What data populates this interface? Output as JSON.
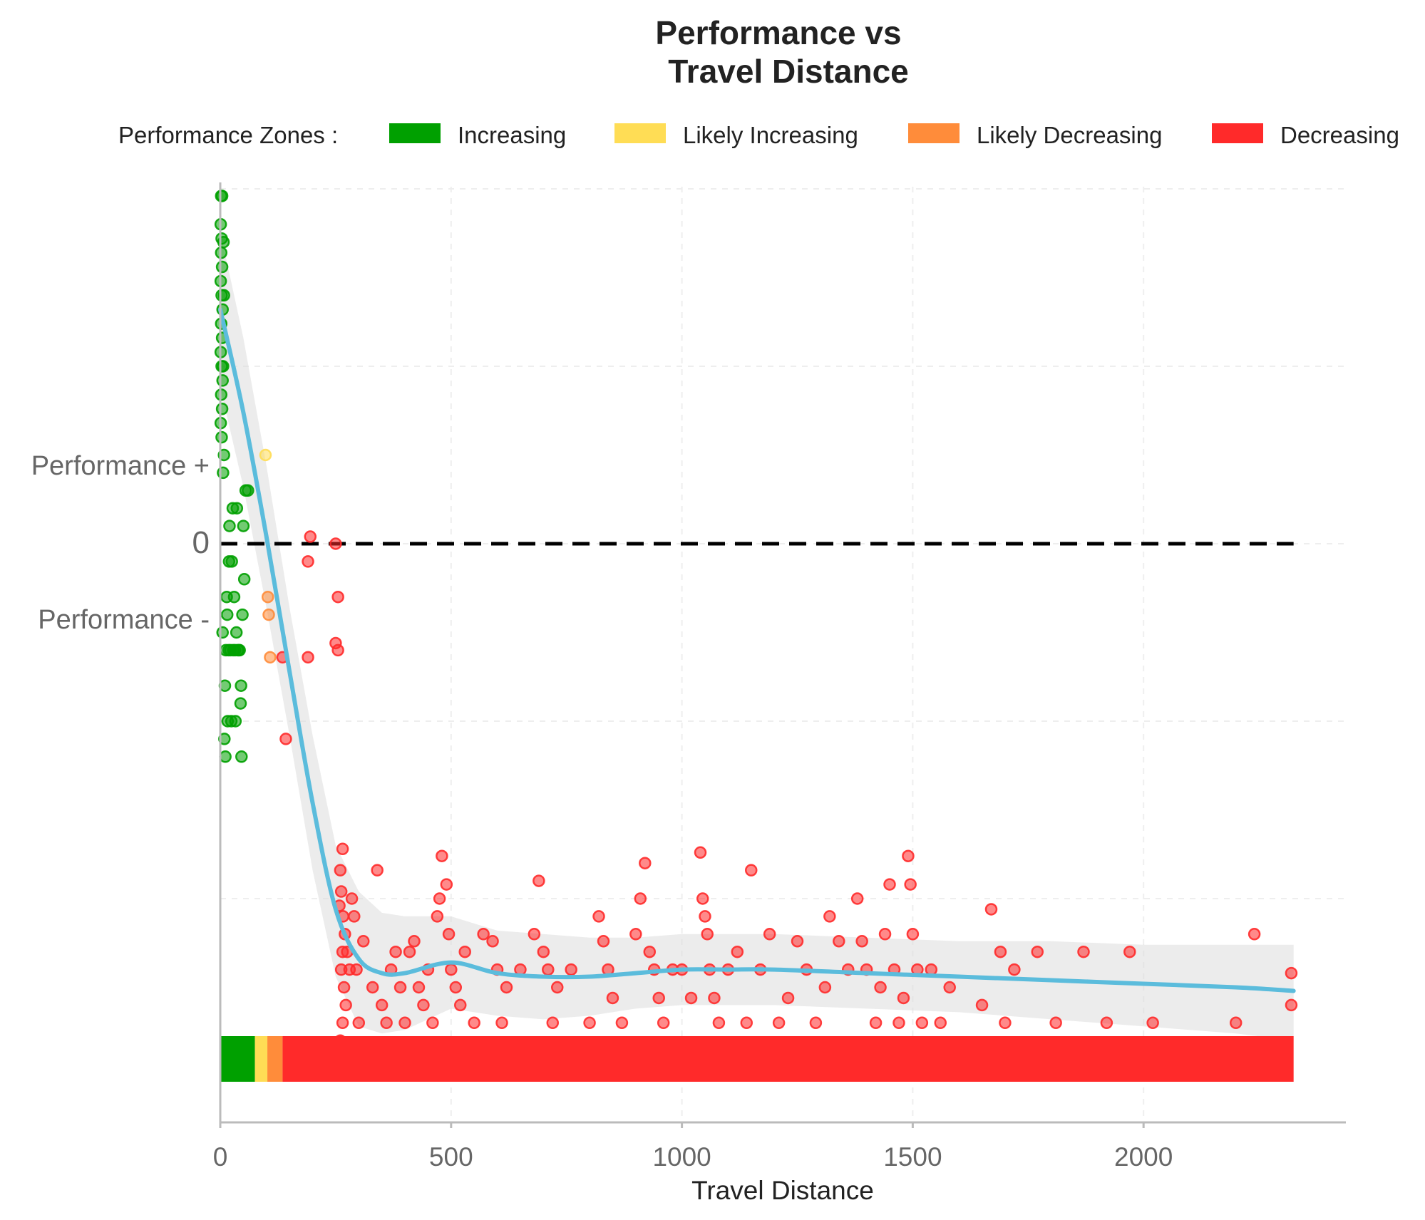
{
  "chart_data": {
    "type": "scatter",
    "title_lines": [
      "Performance vs",
      "Travel Distance"
    ],
    "xlabel": "Travel Distance",
    "x_ticks": [
      0,
      500,
      1000,
      1500,
      2000
    ],
    "x_tick_labels": [
      "0",
      "500",
      "1000",
      "1500",
      "2000"
    ],
    "xlim": [
      0,
      2440
    ],
    "ylim": [
      -1.8,
      1.1
    ],
    "grid": "dashed",
    "y_labels": {
      "plus": "Performance +",
      "zero": "0",
      "minus": "Performance -"
    },
    "legend": {
      "title": "Performance Zones :",
      "placement": "top",
      "entries": [
        {
          "label": "Increasing",
          "color": "#00a000"
        },
        {
          "label": "Likely Increasing",
          "color": "#ffdd55"
        },
        {
          "label": "Likely Decreasing",
          "color": "#ff8c3a"
        },
        {
          "label": "Decreasing",
          "color": "#ff2a2a"
        }
      ]
    },
    "zone_bar": [
      {
        "zone": "Increasing",
        "from": 0,
        "to": 75,
        "color": "#00a000"
      },
      {
        "zone": "Likely Increasing",
        "from": 75,
        "to": 102,
        "color": "#ffdd55"
      },
      {
        "zone": "Likely Decreasing",
        "from": 102,
        "to": 135,
        "color": "#ff8c3a"
      },
      {
        "zone": "Decreasing",
        "from": 135,
        "to": 2325,
        "color": "#ff2a2a"
      }
    ],
    "trend_line": {
      "color": "#5bbcdc",
      "x": [
        0,
        50,
        100,
        150,
        200,
        250,
        300,
        350,
        400,
        500,
        600,
        700,
        800,
        900,
        1000,
        1100,
        1200,
        1400,
        1600,
        1800,
        2000,
        2200,
        2325
      ],
      "y": [
        0.66,
        0.37,
        0.02,
        -0.36,
        -0.73,
        -1.03,
        -1.17,
        -1.21,
        -1.21,
        -1.18,
        -1.21,
        -1.22,
        -1.22,
        -1.21,
        -1.2,
        -1.2,
        -1.2,
        -1.21,
        -1.22,
        -1.23,
        -1.24,
        -1.25,
        -1.26
      ],
      "band_upper": [
        0.88,
        0.58,
        0.22,
        -0.18,
        -0.54,
        -0.85,
        -0.98,
        -1.04,
        -1.05,
        -1.05,
        -1.09,
        -1.1,
        -1.11,
        -1.11,
        -1.1,
        -1.1,
        -1.1,
        -1.11,
        -1.12,
        -1.12,
        -1.13,
        -1.13,
        -1.13
      ],
      "band_lower": [
        0.44,
        0.16,
        -0.18,
        -0.54,
        -0.92,
        -1.22,
        -1.36,
        -1.38,
        -1.37,
        -1.31,
        -1.33,
        -1.34,
        -1.33,
        -1.31,
        -1.3,
        -1.3,
        -1.3,
        -1.31,
        -1.32,
        -1.34,
        -1.36,
        -1.38,
        -1.4
      ]
    },
    "series": [
      {
        "name": "Increasing",
        "color": "#00a000",
        "points": [
          [
            2,
            0.98
          ],
          [
            4,
            0.98
          ],
          [
            1,
            0.9
          ],
          [
            3,
            0.86
          ],
          [
            2,
            0.82
          ],
          [
            4,
            0.78
          ],
          [
            1,
            0.74
          ],
          [
            3,
            0.7
          ],
          [
            5,
            0.66
          ],
          [
            2,
            0.62
          ],
          [
            4,
            0.58
          ],
          [
            1,
            0.54
          ],
          [
            3,
            0.5
          ],
          [
            5,
            0.46
          ],
          [
            2,
            0.42
          ],
          [
            4,
            0.38
          ],
          [
            1,
            0.34
          ],
          [
            3,
            0.3
          ],
          [
            6,
            0.5
          ],
          [
            8,
            0.7
          ],
          [
            7,
            0.85
          ],
          [
            8,
            0.25
          ],
          [
            6,
            0.2
          ],
          [
            15,
            -0.2
          ],
          [
            20,
            0.05
          ],
          [
            25,
            -0.05
          ],
          [
            30,
            -0.15
          ],
          [
            35,
            -0.25
          ],
          [
            40,
            -0.3
          ],
          [
            45,
            -0.4
          ],
          [
            50,
            0.05
          ],
          [
            55,
            0.15
          ],
          [
            60,
            0.15
          ],
          [
            12,
            -0.3
          ],
          [
            18,
            -0.3
          ],
          [
            22,
            -0.3
          ],
          [
            28,
            -0.3
          ],
          [
            32,
            -0.3
          ],
          [
            38,
            -0.3
          ],
          [
            42,
            -0.3
          ],
          [
            48,
            -0.2
          ],
          [
            52,
            -0.1
          ],
          [
            10,
            -0.4
          ],
          [
            16,
            -0.5
          ],
          [
            24,
            -0.5
          ],
          [
            33,
            -0.5
          ],
          [
            44,
            -0.45
          ],
          [
            9,
            -0.55
          ],
          [
            19,
            -0.05
          ],
          [
            27,
            0.1
          ],
          [
            36,
            0.1
          ],
          [
            46,
            -0.6
          ],
          [
            11,
            -0.6
          ],
          [
            5,
            -0.25
          ],
          [
            14,
            -0.15
          ]
        ]
      },
      {
        "name": "Likely Increasing",
        "color": "#ffdd55",
        "points": [
          [
            98,
            0.25
          ]
        ]
      },
      {
        "name": "Likely Decreasing",
        "color": "#ff8c3a",
        "points": [
          [
            103,
            -0.15
          ],
          [
            105,
            -0.2
          ],
          [
            108,
            -0.32
          ]
        ]
      },
      {
        "name": "Decreasing",
        "color": "#ff2a2a",
        "points": [
          [
            135,
            -0.32
          ],
          [
            142,
            -0.55
          ],
          [
            190,
            -0.05
          ],
          [
            195,
            0.02
          ],
          [
            190,
            -0.32
          ],
          [
            250,
            0.0
          ],
          [
            255,
            -0.15
          ],
          [
            250,
            -0.28
          ],
          [
            255,
            -0.3
          ],
          [
            265,
            -0.86
          ],
          [
            260,
            -0.92
          ],
          [
            262,
            -0.98
          ],
          [
            258,
            -1.02
          ],
          [
            266,
            -1.05
          ],
          [
            270,
            -1.1
          ],
          [
            265,
            -1.15
          ],
          [
            262,
            -1.2
          ],
          [
            268,
            -1.25
          ],
          [
            272,
            -1.3
          ],
          [
            265,
            -1.35
          ],
          [
            260,
            -1.4
          ],
          [
            275,
            -1.15
          ],
          [
            280,
            -1.2
          ],
          [
            285,
            -1.0
          ],
          [
            290,
            -1.05
          ],
          [
            295,
            -1.2
          ],
          [
            300,
            -1.35
          ],
          [
            310,
            -1.12
          ],
          [
            330,
            -1.25
          ],
          [
            340,
            -0.92
          ],
          [
            350,
            -1.3
          ],
          [
            360,
            -1.35
          ],
          [
            370,
            -1.2
          ],
          [
            380,
            -1.15
          ],
          [
            390,
            -1.25
          ],
          [
            400,
            -1.35
          ],
          [
            410,
            -1.15
          ],
          [
            420,
            -1.12
          ],
          [
            430,
            -1.25
          ],
          [
            440,
            -1.3
          ],
          [
            450,
            -1.2
          ],
          [
            460,
            -1.35
          ],
          [
            470,
            -1.05
          ],
          [
            475,
            -1.0
          ],
          [
            480,
            -0.88
          ],
          [
            490,
            -0.96
          ],
          [
            495,
            -1.1
          ],
          [
            500,
            -1.2
          ],
          [
            510,
            -1.25
          ],
          [
            520,
            -1.3
          ],
          [
            530,
            -1.15
          ],
          [
            550,
            -1.35
          ],
          [
            570,
            -1.1
          ],
          [
            590,
            -1.12
          ],
          [
            600,
            -1.2
          ],
          [
            610,
            -1.35
          ],
          [
            620,
            -1.25
          ],
          [
            650,
            -1.2
          ],
          [
            680,
            -1.1
          ],
          [
            690,
            -0.95
          ],
          [
            700,
            -1.15
          ],
          [
            710,
            -1.2
          ],
          [
            720,
            -1.35
          ],
          [
            730,
            -1.25
          ],
          [
            760,
            -1.2
          ],
          [
            800,
            -1.35
          ],
          [
            820,
            -1.05
          ],
          [
            830,
            -1.12
          ],
          [
            840,
            -1.2
          ],
          [
            850,
            -1.28
          ],
          [
            870,
            -1.35
          ],
          [
            900,
            -1.1
          ],
          [
            910,
            -1.0
          ],
          [
            920,
            -0.9
          ],
          [
            930,
            -1.15
          ],
          [
            940,
            -1.2
          ],
          [
            950,
            -1.28
          ],
          [
            960,
            -1.35
          ],
          [
            980,
            -1.2
          ],
          [
            1000,
            -1.2
          ],
          [
            1020,
            -1.28
          ],
          [
            1040,
            -0.87
          ],
          [
            1045,
            -1.0
          ],
          [
            1050,
            -1.05
          ],
          [
            1055,
            -1.1
          ],
          [
            1060,
            -1.2
          ],
          [
            1070,
            -1.28
          ],
          [
            1080,
            -1.35
          ],
          [
            1100,
            -1.2
          ],
          [
            1120,
            -1.15
          ],
          [
            1140,
            -1.35
          ],
          [
            1150,
            -0.92
          ],
          [
            1170,
            -1.2
          ],
          [
            1190,
            -1.1
          ],
          [
            1210,
            -1.35
          ],
          [
            1230,
            -1.28
          ],
          [
            1250,
            -1.12
          ],
          [
            1270,
            -1.2
          ],
          [
            1290,
            -1.35
          ],
          [
            1310,
            -1.25
          ],
          [
            1320,
            -1.05
          ],
          [
            1340,
            -1.12
          ],
          [
            1360,
            -1.2
          ],
          [
            1380,
            -1.0
          ],
          [
            1390,
            -1.12
          ],
          [
            1400,
            -1.2
          ],
          [
            1420,
            -1.35
          ],
          [
            1430,
            -1.25
          ],
          [
            1440,
            -1.1
          ],
          [
            1450,
            -0.96
          ],
          [
            1460,
            -1.2
          ],
          [
            1470,
            -1.35
          ],
          [
            1480,
            -1.28
          ],
          [
            1490,
            -0.88
          ],
          [
            1495,
            -0.96
          ],
          [
            1500,
            -1.1
          ],
          [
            1510,
            -1.2
          ],
          [
            1520,
            -1.35
          ],
          [
            1540,
            -1.2
          ],
          [
            1560,
            -1.35
          ],
          [
            1580,
            -1.25
          ],
          [
            1650,
            -1.3
          ],
          [
            1670,
            -1.03
          ],
          [
            1690,
            -1.15
          ],
          [
            1700,
            -1.35
          ],
          [
            1720,
            -1.2
          ],
          [
            1770,
            -1.15
          ],
          [
            1810,
            -1.35
          ],
          [
            1870,
            -1.15
          ],
          [
            1920,
            -1.35
          ],
          [
            1970,
            -1.15
          ],
          [
            2020,
            -1.35
          ],
          [
            2200,
            -1.35
          ],
          [
            2240,
            -1.1
          ],
          [
            2320,
            -1.21
          ],
          [
            2320,
            -1.3
          ]
        ]
      }
    ]
  }
}
